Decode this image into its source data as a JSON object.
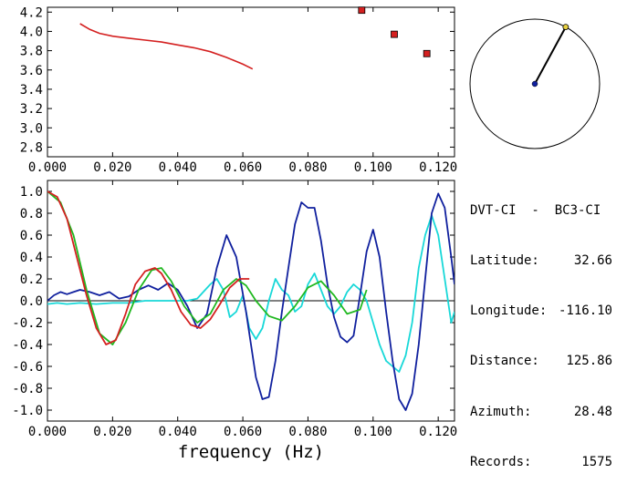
{
  "chart_data": [
    {
      "type": "scatter",
      "name": "phase-velocity",
      "xlim": [
        0.0,
        0.125
      ],
      "ylim": [
        2.7,
        4.25
      ],
      "x_ticks": [
        "0.000",
        "0.020",
        "0.040",
        "0.060",
        "0.080",
        "0.100",
        "0.120"
      ],
      "x_tick_values": [
        0.0,
        0.02,
        0.04,
        0.06,
        0.08,
        0.1,
        0.12
      ],
      "y_ticks": [
        "2.8",
        "3.0",
        "3.2",
        "3.4",
        "3.6",
        "3.8",
        "4.0",
        "4.2"
      ],
      "y_tick_values": [
        2.8,
        3.0,
        3.2,
        3.4,
        3.6,
        3.8,
        4.0,
        4.2
      ],
      "line": {
        "color": "#d42020",
        "x": [
          0.01,
          0.013,
          0.016,
          0.02,
          0.025,
          0.03,
          0.035,
          0.04,
          0.045,
          0.05,
          0.055,
          0.06,
          0.063
        ],
        "y": [
          4.08,
          4.02,
          3.98,
          3.95,
          3.93,
          3.91,
          3.89,
          3.86,
          3.83,
          3.79,
          3.73,
          3.66,
          3.61
        ]
      },
      "points": {
        "color": "#d42020",
        "x": [
          0.0965,
          0.1065,
          0.1165
        ],
        "y": [
          4.22,
          3.97,
          3.77
        ]
      }
    },
    {
      "type": "line",
      "name": "coherence",
      "xlabel": "frequency (Hz)",
      "xlim": [
        0.0,
        0.125
      ],
      "ylim": [
        -1.1,
        1.1
      ],
      "x_ticks": [
        "0.000",
        "0.020",
        "0.040",
        "0.060",
        "0.080",
        "0.100",
        "0.120"
      ],
      "x_tick_values": [
        0.0,
        0.02,
        0.04,
        0.06,
        0.08,
        0.1,
        0.12
      ],
      "y_ticks": [
        "1.0",
        "0.8",
        "0.6",
        "0.4",
        "0.2",
        "0.0",
        "-0.2",
        "-0.4",
        "-0.6",
        "-0.8",
        "-1.0"
      ],
      "y_tick_values": [
        1.0,
        0.8,
        0.6,
        0.4,
        0.2,
        0.0,
        -0.2,
        -0.4,
        -0.6,
        -0.8,
        -1.0
      ],
      "series": [
        {
          "color": "#18d8d8",
          "x": [
            0.0,
            0.003,
            0.006,
            0.01,
            0.015,
            0.02,
            0.025,
            0.03,
            0.035,
            0.04,
            0.043,
            0.046,
            0.05,
            0.052,
            0.054,
            0.056,
            0.058,
            0.06,
            0.062,
            0.064,
            0.066,
            0.068,
            0.07,
            0.072,
            0.074,
            0.076,
            0.078,
            0.08,
            0.082,
            0.084,
            0.086,
            0.088,
            0.09,
            0.092,
            0.094,
            0.096,
            0.098,
            0.1,
            0.102,
            0.104,
            0.106,
            0.108,
            0.11,
            0.112,
            0.114,
            0.116,
            0.118,
            0.12,
            0.122,
            0.124,
            0.125
          ],
          "y": [
            -0.03,
            -0.02,
            -0.03,
            -0.02,
            -0.03,
            -0.02,
            -0.02,
            0.0,
            0.0,
            0.0,
            0.0,
            0.02,
            0.15,
            0.2,
            0.1,
            -0.15,
            -0.1,
            0.05,
            -0.25,
            -0.35,
            -0.25,
            0.0,
            0.2,
            0.1,
            0.05,
            -0.1,
            -0.05,
            0.15,
            0.25,
            0.1,
            -0.05,
            -0.12,
            -0.05,
            0.08,
            0.15,
            0.1,
            0.0,
            -0.2,
            -0.4,
            -0.55,
            -0.6,
            -0.65,
            -0.5,
            -0.2,
            0.3,
            0.6,
            0.78,
            0.6,
            0.2,
            -0.2,
            -0.1
          ]
        },
        {
          "color": "#10209e",
          "x": [
            0.0,
            0.002,
            0.004,
            0.006,
            0.008,
            0.01,
            0.013,
            0.016,
            0.019,
            0.022,
            0.025,
            0.028,
            0.031,
            0.034,
            0.037,
            0.04,
            0.043,
            0.046,
            0.049,
            0.052,
            0.055,
            0.058,
            0.061,
            0.064,
            0.066,
            0.068,
            0.07,
            0.072,
            0.074,
            0.076,
            0.078,
            0.08,
            0.082,
            0.084,
            0.086,
            0.088,
            0.09,
            0.092,
            0.094,
            0.096,
            0.098,
            0.1,
            0.102,
            0.104,
            0.106,
            0.108,
            0.11,
            0.112,
            0.114,
            0.116,
            0.118,
            0.12,
            0.122,
            0.124,
            0.125
          ],
          "y": [
            0.0,
            0.05,
            0.08,
            0.06,
            0.08,
            0.1,
            0.08,
            0.05,
            0.08,
            0.02,
            0.04,
            0.1,
            0.14,
            0.1,
            0.16,
            0.1,
            -0.05,
            -0.25,
            -0.12,
            0.3,
            0.6,
            0.4,
            -0.1,
            -0.7,
            -0.9,
            -0.88,
            -0.55,
            -0.1,
            0.3,
            0.7,
            0.9,
            0.85,
            0.85,
            0.55,
            0.15,
            -0.15,
            -0.33,
            -0.38,
            -0.32,
            0.05,
            0.45,
            0.65,
            0.4,
            -0.1,
            -0.55,
            -0.9,
            -1.0,
            -0.85,
            -0.4,
            0.2,
            0.8,
            0.98,
            0.85,
            0.4,
            0.15
          ]
        },
        {
          "color": "#20b820",
          "x": [
            0.0,
            0.004,
            0.008,
            0.012,
            0.016,
            0.02,
            0.024,
            0.028,
            0.032,
            0.035,
            0.038,
            0.042,
            0.046,
            0.05,
            0.054,
            0.058,
            0.061,
            0.064,
            0.068,
            0.072,
            0.076,
            0.08,
            0.084,
            0.088,
            0.092,
            0.096,
            0.098
          ],
          "y": [
            1.0,
            0.9,
            0.6,
            0.1,
            -0.3,
            -0.4,
            -0.2,
            0.1,
            0.28,
            0.3,
            0.18,
            -0.05,
            -0.2,
            -0.12,
            0.1,
            0.2,
            0.14,
            0.0,
            -0.14,
            -0.18,
            -0.05,
            0.12,
            0.18,
            0.05,
            -0.12,
            -0.08,
            0.1
          ]
        },
        {
          "color": "#d42020",
          "x": [
            0.0,
            0.003,
            0.006,
            0.009,
            0.012,
            0.015,
            0.018,
            0.021,
            0.024,
            0.027,
            0.03,
            0.033,
            0.035,
            0.038,
            0.041,
            0.044,
            0.047,
            0.05,
            0.053,
            0.056,
            0.059,
            0.062
          ],
          "y": [
            1.0,
            0.95,
            0.75,
            0.4,
            0.05,
            -0.25,
            -0.4,
            -0.36,
            -0.12,
            0.15,
            0.27,
            0.3,
            0.25,
            0.1,
            -0.1,
            -0.22,
            -0.25,
            -0.17,
            -0.03,
            0.12,
            0.2,
            0.2
          ]
        }
      ]
    },
    {
      "type": "scatter",
      "name": "azimuth-dial",
      "azimuth_deg": 28.48,
      "line_color": "#000000",
      "center_color": "#10209e",
      "tip_color": "#e8d040"
    }
  ],
  "info": {
    "title": "DVT-CI  -  BC3-CI",
    "rows": [
      {
        "label": "Latitude:",
        "value": "32.66"
      },
      {
        "label": "Longitude:",
        "value": "-116.10"
      },
      {
        "label": "Distance:",
        "value": "125.86"
      },
      {
        "label": "Azimuth:",
        "value": "28.48"
      },
      {
        "label": "Records:",
        "value": "1575"
      }
    ]
  }
}
